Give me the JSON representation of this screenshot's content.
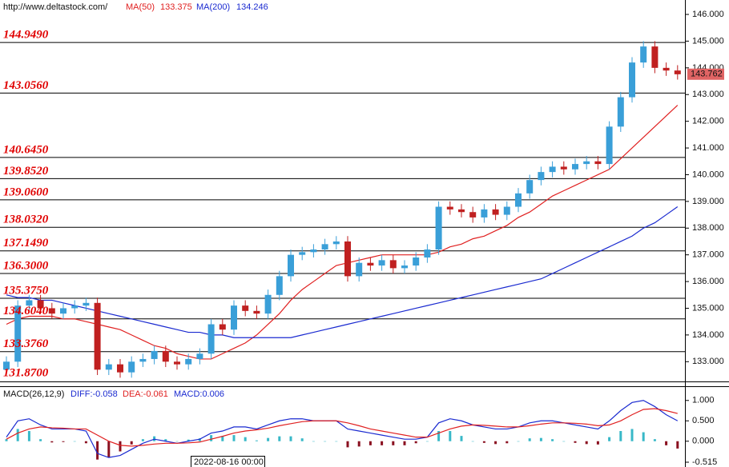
{
  "chart_data": {
    "type": "candlestick",
    "source": "http://www.deltastock.com/",
    "up_color": "#3a9fd8",
    "down_color": "#c02020",
    "candles": {
      "open": [
        132.7,
        133.0,
        135.1,
        135.3,
        135.0,
        134.8,
        135.0,
        135.1,
        135.2,
        132.7,
        132.9,
        132.6,
        133.0,
        133.1,
        133.4,
        133.0,
        132.9,
        133.1,
        133.3,
        134.4,
        134.2,
        135.1,
        134.9,
        134.8,
        135.5,
        136.2,
        137.0,
        137.1,
        137.2,
        137.4,
        137.5,
        136.2,
        136.7,
        136.6,
        136.8,
        136.5,
        136.6,
        136.9,
        137.2,
        138.8,
        138.7,
        138.6,
        138.4,
        138.7,
        138.5,
        138.8,
        139.3,
        139.8,
        140.1,
        140.3,
        140.2,
        140.4,
        140.5,
        140.4,
        141.8,
        142.9,
        144.2,
        144.8,
        144.0,
        143.9
      ],
      "high": [
        133.2,
        135.3,
        135.5,
        135.5,
        135.2,
        135.2,
        135.3,
        135.4,
        135.4,
        133.1,
        133.1,
        133.2,
        133.3,
        133.6,
        133.6,
        133.2,
        133.3,
        133.5,
        134.6,
        134.6,
        135.3,
        135.3,
        135.1,
        135.7,
        136.4,
        137.2,
        137.3,
        137.4,
        137.6,
        137.7,
        137.7,
        136.9,
        136.9,
        137.0,
        137.0,
        136.8,
        137.1,
        137.4,
        139.0,
        139.0,
        138.9,
        138.8,
        138.9,
        138.9,
        139.0,
        139.5,
        140.0,
        140.3,
        140.5,
        140.5,
        140.6,
        140.7,
        140.7,
        142.0,
        143.1,
        144.4,
        145.0,
        145.0,
        144.2,
        144.1
      ],
      "low": [
        132.5,
        132.8,
        134.9,
        134.8,
        134.6,
        134.6,
        134.8,
        134.9,
        132.5,
        132.5,
        132.4,
        132.4,
        132.8,
        132.9,
        132.8,
        132.7,
        132.7,
        132.9,
        133.1,
        134.0,
        134.0,
        134.7,
        134.6,
        134.6,
        135.3,
        136.0,
        136.8,
        136.9,
        137.0,
        137.2,
        136.0,
        136.0,
        136.4,
        136.4,
        136.3,
        136.3,
        136.4,
        136.7,
        137.0,
        138.5,
        138.4,
        138.2,
        138.2,
        138.3,
        138.3,
        138.6,
        139.1,
        139.6,
        139.9,
        140.0,
        140.0,
        140.2,
        140.2,
        140.2,
        141.6,
        142.7,
        144.0,
        143.8,
        143.7,
        143.56
      ],
      "close": [
        133.0,
        135.1,
        135.3,
        135.0,
        134.8,
        135.0,
        135.1,
        135.2,
        132.7,
        132.9,
        132.6,
        133.0,
        133.1,
        133.4,
        133.0,
        132.9,
        133.1,
        133.3,
        134.4,
        134.2,
        135.1,
        134.9,
        134.8,
        135.5,
        136.2,
        137.0,
        137.1,
        137.2,
        137.4,
        137.5,
        136.2,
        136.7,
        136.6,
        136.8,
        136.5,
        136.6,
        136.9,
        137.2,
        138.8,
        138.7,
        138.6,
        138.4,
        138.7,
        138.5,
        138.8,
        139.3,
        139.8,
        140.1,
        140.3,
        140.2,
        140.4,
        140.5,
        140.4,
        141.8,
        142.9,
        144.2,
        144.8,
        144.0,
        143.9,
        143.76
      ]
    },
    "series": [
      {
        "name": "MA(50)",
        "last": 133.375,
        "color": "#e02020",
        "values": [
          134.4,
          134.6,
          134.7,
          134.7,
          134.7,
          134.6,
          134.6,
          134.5,
          134.4,
          134.3,
          134.2,
          134.0,
          133.8,
          133.6,
          133.5,
          133.3,
          133.2,
          133.1,
          133.1,
          133.3,
          133.5,
          133.7,
          134.0,
          134.4,
          134.8,
          135.3,
          135.7,
          136.0,
          136.3,
          136.6,
          136.7,
          136.8,
          136.9,
          137.0,
          137.0,
          137.0,
          137.0,
          137.0,
          137.1,
          137.3,
          137.4,
          137.6,
          137.7,
          137.9,
          138.1,
          138.4,
          138.6,
          138.9,
          139.2,
          139.4,
          139.6,
          139.8,
          140.0,
          140.2,
          140.6,
          141.0,
          141.4,
          141.8,
          142.2,
          142.6
        ]
      },
      {
        "name": "MA(200)",
        "last": 134.246,
        "color": "#1a2ad0",
        "values": [
          135.5,
          135.4,
          135.4,
          135.3,
          135.3,
          135.2,
          135.1,
          135.0,
          134.9,
          134.8,
          134.7,
          134.6,
          134.5,
          134.4,
          134.3,
          134.2,
          134.1,
          134.1,
          134.0,
          134.0,
          133.9,
          133.9,
          133.9,
          133.9,
          133.9,
          133.9,
          134.0,
          134.1,
          134.2,
          134.3,
          134.4,
          134.5,
          134.6,
          134.7,
          134.8,
          134.9,
          135.0,
          135.1,
          135.2,
          135.3,
          135.4,
          135.5,
          135.6,
          135.7,
          135.8,
          135.9,
          136.0,
          136.1,
          136.3,
          136.5,
          136.7,
          136.9,
          137.1,
          137.3,
          137.5,
          137.7,
          138.0,
          138.2,
          138.5,
          138.8
        ]
      }
    ],
    "levels": [
      {
        "value": 144.949,
        "label": "144.9490"
      },
      {
        "value": 143.056,
        "label": "143.0560"
      },
      {
        "value": 140.645,
        "label": "140.6450"
      },
      {
        "value": 139.852,
        "label": "139.8520"
      },
      {
        "value": 139.06,
        "label": "139.0600"
      },
      {
        "value": 138.032,
        "label": "138.0320"
      },
      {
        "value": 137.149,
        "label": "137.1490"
      },
      {
        "value": 136.3,
        "label": "136.3000"
      },
      {
        "value": 135.375,
        "label": "135.3750"
      },
      {
        "value": 134.604,
        "label": "134.6040"
      },
      {
        "value": 133.376,
        "label": "133.3760"
      },
      {
        "value": 131.87,
        "label": "131.8700"
      }
    ],
    "ylim": [
      132.26,
      146.54
    ],
    "yticks": [
      {
        "value": 133,
        "label": "133.000"
      },
      {
        "value": 134,
        "label": "134.000"
      },
      {
        "value": 135,
        "label": "135.000"
      },
      {
        "value": 136,
        "label": "136.000"
      },
      {
        "value": 137,
        "label": "137.000"
      },
      {
        "value": 138,
        "label": "138.000"
      },
      {
        "value": 139,
        "label": "139.000"
      },
      {
        "value": 140,
        "label": "140.000"
      },
      {
        "value": 141,
        "label": "141.000"
      },
      {
        "value": 142,
        "label": "142.000"
      },
      {
        "value": 143,
        "label": "143.000"
      },
      {
        "value": 144,
        "label": "144.000"
      },
      {
        "value": 145,
        "label": "145.000"
      },
      {
        "value": 146,
        "label": "146.000"
      }
    ],
    "last_price": 143.762,
    "cursor_date": "2022-08-16 00:00",
    "macd": {
      "title": "MACD(26,12,9)",
      "diff_label": "DIFF:-0.058",
      "dea_label": "DEA:-0.061",
      "macd_label": "MACD:0.006",
      "diff_color": "#1a2ad0",
      "dea_color": "#e02020",
      "hist_up_color": "#38b8c8",
      "hist_down_color": "#8a1020",
      "diff": [
        0.1,
        0.5,
        0.55,
        0.4,
        0.3,
        0.3,
        0.3,
        0.25,
        -0.3,
        -0.4,
        -0.35,
        -0.2,
        -0.05,
        0.05,
        0.0,
        -0.05,
        0.0,
        0.05,
        0.2,
        0.25,
        0.35,
        0.35,
        0.3,
        0.4,
        0.5,
        0.55,
        0.55,
        0.5,
        0.5,
        0.5,
        0.3,
        0.25,
        0.2,
        0.15,
        0.1,
        0.05,
        0.05,
        0.1,
        0.45,
        0.55,
        0.5,
        0.4,
        0.35,
        0.3,
        0.3,
        0.35,
        0.45,
        0.5,
        0.5,
        0.45,
        0.4,
        0.35,
        0.3,
        0.5,
        0.75,
        0.95,
        1.0,
        0.85,
        0.65,
        0.5
      ],
      "dea": [
        0.05,
        0.2,
        0.3,
        0.35,
        0.33,
        0.32,
        0.3,
        0.3,
        0.15,
        0.0,
        -0.1,
        -0.12,
        -0.1,
        -0.07,
        -0.05,
        -0.05,
        -0.04,
        -0.02,
        0.05,
        0.12,
        0.2,
        0.25,
        0.28,
        0.32,
        0.38,
        0.43,
        0.48,
        0.5,
        0.5,
        0.5,
        0.45,
        0.38,
        0.3,
        0.25,
        0.2,
        0.15,
        0.1,
        0.1,
        0.2,
        0.3,
        0.37,
        0.4,
        0.39,
        0.37,
        0.35,
        0.35,
        0.38,
        0.42,
        0.45,
        0.45,
        0.44,
        0.42,
        0.38,
        0.4,
        0.5,
        0.65,
        0.78,
        0.8,
        0.75,
        0.68
      ],
      "hist": [
        0.05,
        0.3,
        0.25,
        0.05,
        -0.03,
        -0.02,
        0.0,
        -0.05,
        -0.45,
        -0.4,
        -0.25,
        -0.08,
        0.05,
        0.12,
        0.05,
        0.0,
        0.04,
        0.07,
        0.15,
        0.13,
        0.15,
        0.1,
        0.02,
        0.08,
        0.12,
        0.12,
        0.07,
        0.0,
        0.0,
        0.0,
        -0.15,
        -0.13,
        -0.1,
        -0.1,
        -0.1,
        -0.1,
        -0.05,
        0.0,
        0.25,
        0.25,
        0.13,
        0.0,
        -0.04,
        -0.07,
        -0.05,
        0.0,
        0.07,
        0.08,
        0.05,
        0.0,
        -0.04,
        -0.07,
        -0.08,
        0.1,
        0.25,
        0.3,
        0.22,
        0.05,
        -0.1,
        -0.18
      ],
      "ylim": [
        -0.515,
        1.29
      ],
      "yticks": [
        {
          "value": 1,
          "label": "1.000"
        },
        {
          "value": 0.5,
          "label": "0.500"
        },
        {
          "value": 0,
          "label": "0.000"
        },
        -0.515
      ]
    }
  }
}
